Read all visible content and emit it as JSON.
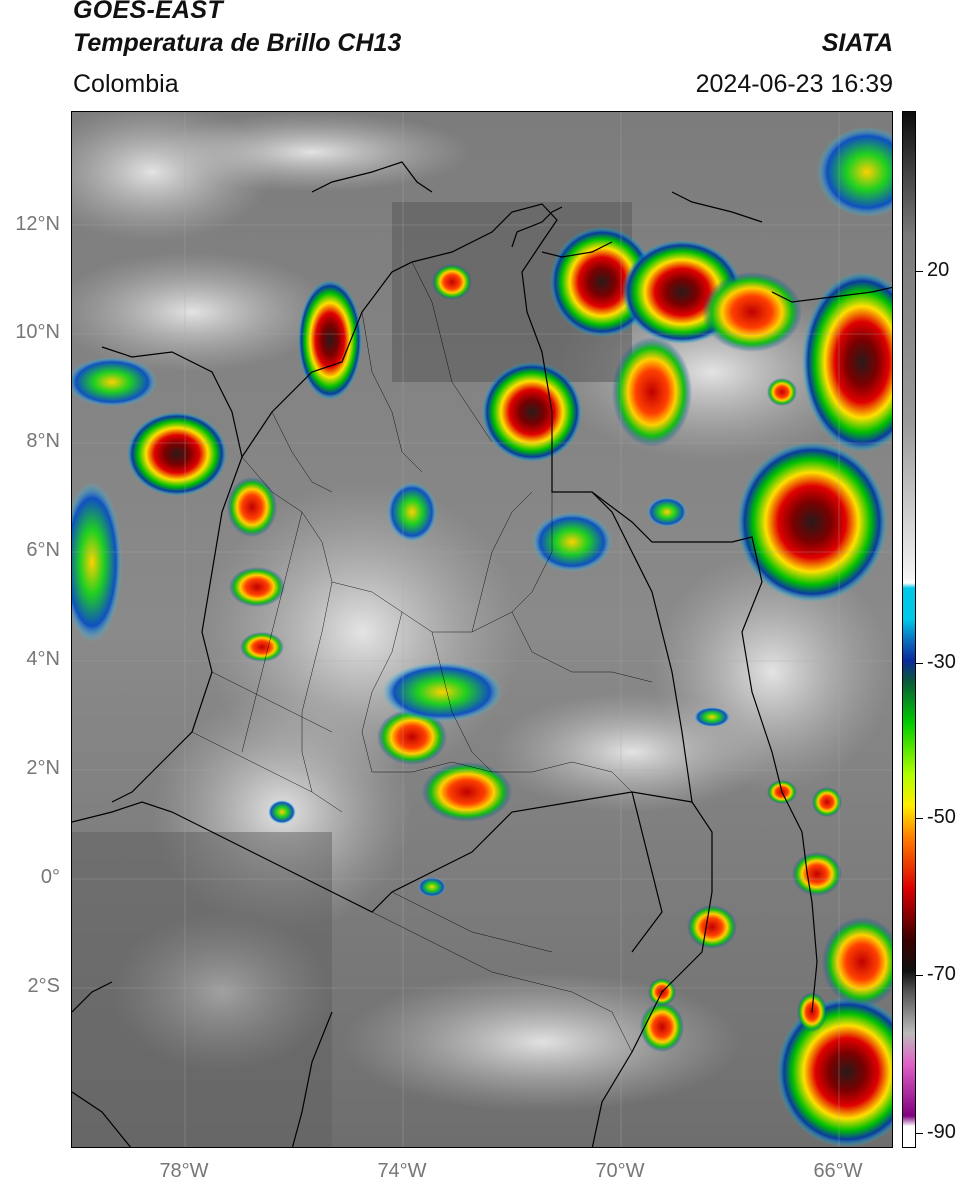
{
  "header": {
    "satellite": "GOES-EAST",
    "product": "Temperatura de Brillo CH13",
    "region": "Colombia",
    "agency": "SIATA",
    "datetime": "2024-06-23 16:39"
  },
  "axes": {
    "lat_labels": [
      "12°N",
      "10°N",
      "8°N",
      "6°N",
      "4°N",
      "2°N",
      "0°",
      "2°S"
    ],
    "lon_labels": [
      "78°W",
      "74°W",
      "70°W",
      "66°W"
    ]
  },
  "colorbar": {
    "ticks": [
      "20",
      "-30",
      "-50",
      "-70",
      "-90"
    ],
    "colors": {
      "warm_top": "#0d0d0d",
      "gray": "#7a7a7a",
      "light": "#f4f4f4",
      "cyan": "#00c8e8",
      "blue": "#0a2a9a",
      "green": "#00cc00",
      "yellow": "#ffee00",
      "red": "#dd0000",
      "dark_red": "#3a0000",
      "pink": "#e060c8",
      "purple": "#800080"
    }
  }
}
